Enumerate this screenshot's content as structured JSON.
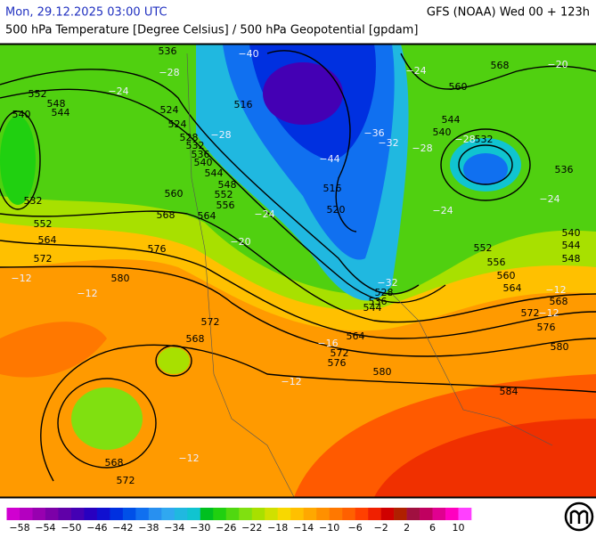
{
  "header": {
    "datetime": "Mon, 29.12.2025 03:00 UTC",
    "model": "GFS (NOAA) Wed 00 + 123h",
    "subtitle": "500 hPa Temperature [Degree Celsius] / 500 hPa Geopotential [gpdam]"
  },
  "map": {
    "height_labels": [
      536,
      552,
      548,
      544,
      540,
      524,
      524,
      528,
      532,
      536,
      540,
      544,
      548,
      552,
      556,
      564,
      560,
      568,
      576,
      532,
      552,
      564,
      572,
      580,
      572,
      568,
      568,
      572,
      564,
      572,
      576,
      580,
      584,
      580,
      576,
      572,
      568,
      564,
      560,
      556,
      552,
      548,
      544,
      540,
      536,
      532,
      540,
      544,
      560,
      568,
      516,
      520,
      528,
      536,
      544,
      516
    ],
    "temperature_labels": [
      "−40",
      "−44",
      "−36",
      "−32",
      "−28",
      "−28",
      "−24",
      "−24",
      "−24",
      "−28",
      "−24",
      "−20",
      "−12",
      "−12",
      "−12",
      "−12",
      "−16",
      "−12",
      "−12",
      "−32",
      "−28",
      "−24",
      "−20"
    ]
  },
  "colorbar": {
    "colors": [
      "#d000d0",
      "#b400c0",
      "#9800b0",
      "#7c00a8",
      "#6000a8",
      "#4400b4",
      "#2800c0",
      "#1010d0",
      "#0030e0",
      "#0050e8",
      "#1070f0",
      "#2890f0",
      "#30a8f0",
      "#20b8e0",
      "#10c4d0",
      "#00c020",
      "#20d010",
      "#50d810",
      "#80e010",
      "#a8e000",
      "#d0e000",
      "#f8d800",
      "#ffc000",
      "#ffa800",
      "#ff9000",
      "#ff7800",
      "#ff6000",
      "#ff4000",
      "#f02000",
      "#d00000",
      "#b02000",
      "#a01040",
      "#c00060",
      "#e00090",
      "#ff00c0",
      "#ff40ff"
    ],
    "range": [
      -60,
      12
    ],
    "ticks": [
      {
        "value": -58,
        "label": "−58"
      },
      {
        "value": -54,
        "label": "−54"
      },
      {
        "value": -50,
        "label": "−50"
      },
      {
        "value": -46,
        "label": "−46"
      },
      {
        "value": -42,
        "label": "−42"
      },
      {
        "value": -38,
        "label": "−38"
      },
      {
        "value": -34,
        "label": "−34"
      },
      {
        "value": -30,
        "label": "−30"
      },
      {
        "value": -26,
        "label": "−26"
      },
      {
        "value": -22,
        "label": "−22"
      },
      {
        "value": -18,
        "label": "−18"
      },
      {
        "value": -14,
        "label": "−14"
      },
      {
        "value": -10,
        "label": "−10"
      },
      {
        "value": -6,
        "label": "−6"
      },
      {
        "value": -2,
        "label": "−2"
      },
      2,
      6,
      10
    ]
  }
}
